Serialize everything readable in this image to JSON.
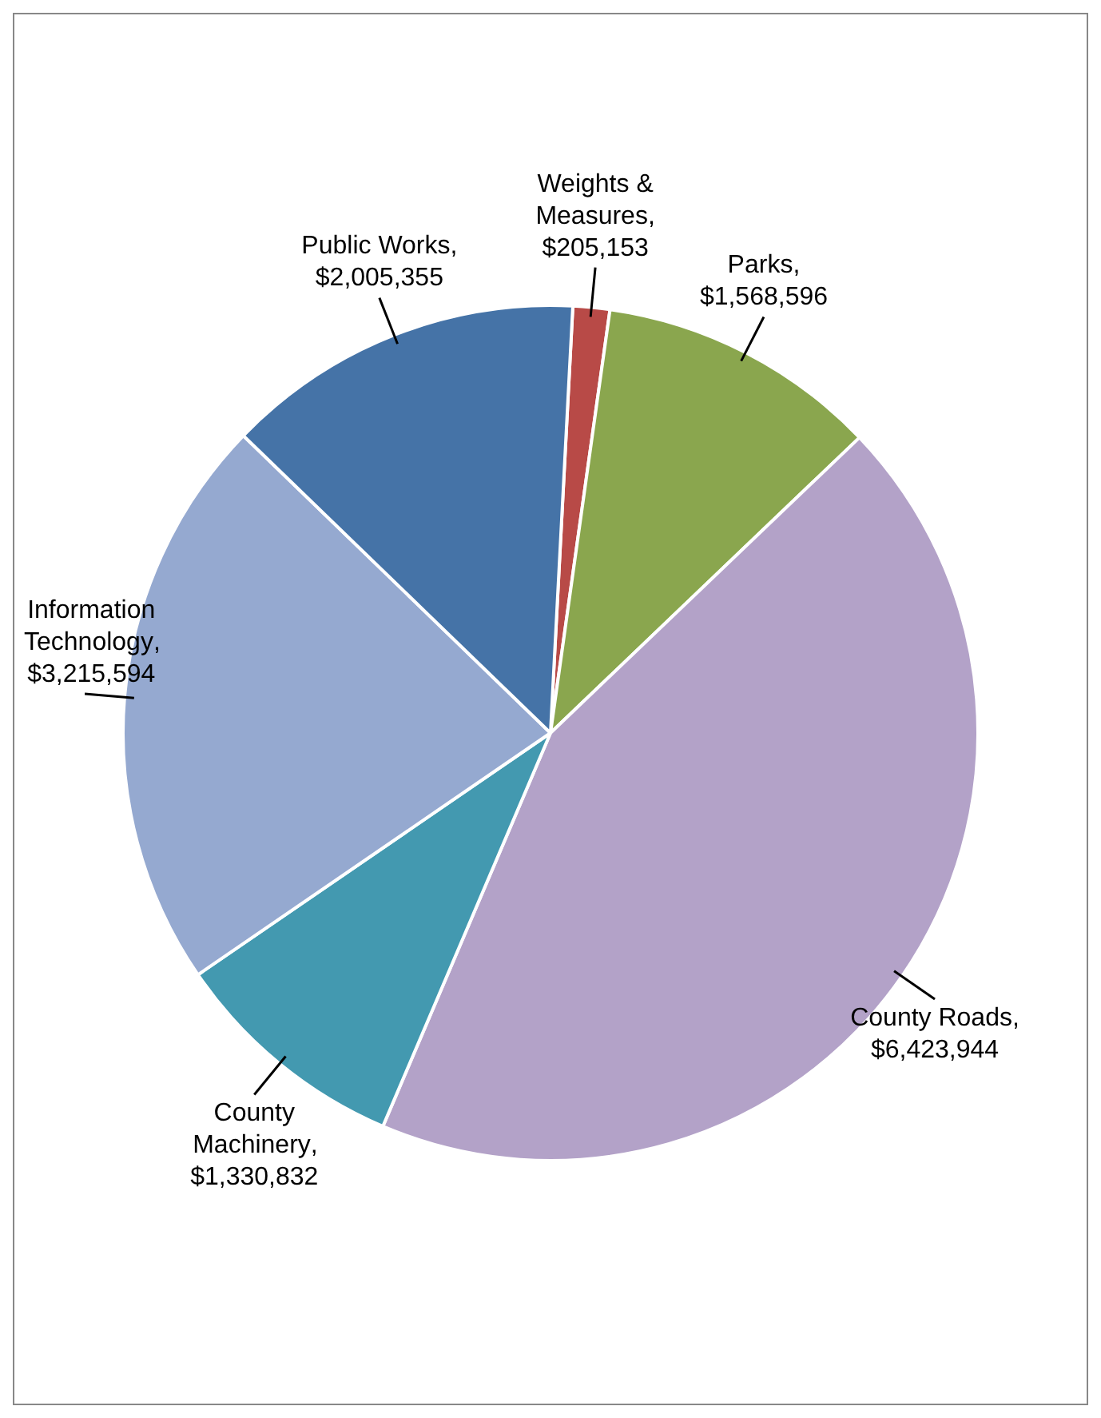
{
  "chart_data": {
    "type": "pie",
    "categories": [
      "Weights & Measures",
      "Parks",
      "County Roads",
      "County Machinery",
      "Information Technology",
      "Public Works"
    ],
    "values": [
      205153,
      1568596,
      6423944,
      1330832,
      3215594,
      2005355
    ],
    "colors": [
      "#b84a47",
      "#8aa64e",
      "#b3a2c8",
      "#4399b0",
      "#95a9d0",
      "#4573a7"
    ],
    "value_labels": [
      ", $205,153",
      ", $1,568,596",
      ", $6,423,944",
      ", $1,330,832",
      ", $3,215,594",
      ", $2,005,355"
    ],
    "legend": false
  }
}
